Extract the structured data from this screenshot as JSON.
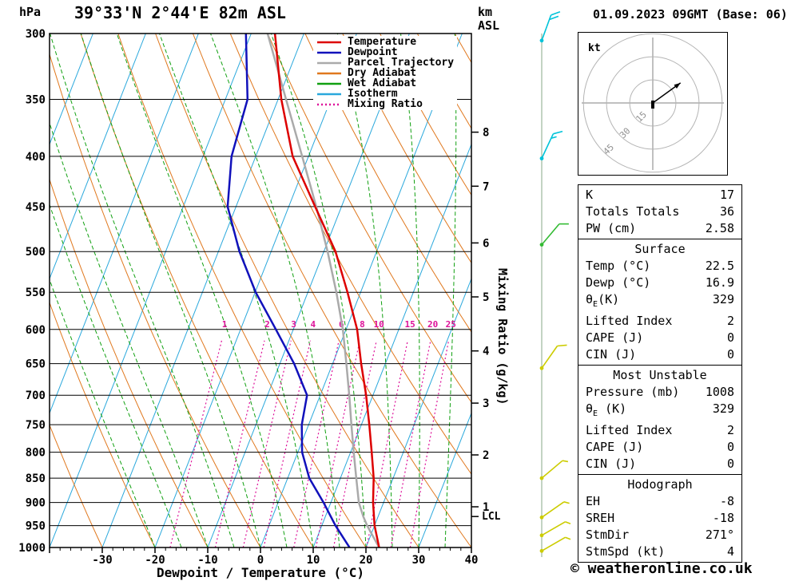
{
  "header": {
    "pressure_unit": "hPa",
    "station": "39°33'N 2°44'E 82m ASL",
    "altitude_unit_line1": "km",
    "altitude_unit_line2": "ASL",
    "datetime": "01.09.2023 09GMT (Base: 06)"
  },
  "footer": {
    "credit": "© weatheronline.co.uk"
  },
  "side_labels": {
    "mixing_ratio_axis": "Mixing Ratio (g/kg)",
    "xlabel": "Dewpoint / Temperature (°C)",
    "lcl": "LCL"
  },
  "legend": [
    {
      "label": "Temperature",
      "color": "#dd0000",
      "dash": ""
    },
    {
      "label": "Dewpoint",
      "color": "#1111bb",
      "dash": ""
    },
    {
      "label": "Parcel Trajectory",
      "color": "#aaaaaa",
      "dash": ""
    },
    {
      "label": "Dry Adiabat",
      "color": "#e0781e",
      "dash": ""
    },
    {
      "label": "Wet Adiabat",
      "color": "#11a011",
      "dash": ""
    },
    {
      "label": "Isotherm",
      "color": "#2aa8dc",
      "dash": ""
    },
    {
      "label": "Mixing Ratio",
      "color": "#dd1199",
      "dash": "2,3"
    }
  ],
  "chart_data": {
    "type": "line",
    "projection": "skew-t-log-p",
    "title": "39°33'N 2°44'E 82m ASL",
    "x_axis": {
      "label": "Dewpoint / Temperature (°C)",
      "ticks": [
        -30,
        -20,
        -10,
        0,
        10,
        20,
        30,
        40
      ],
      "min": -40,
      "max": 40,
      "skew": 0.392
    },
    "y_axis": {
      "label": "hPa",
      "scale": "log",
      "ticks": [
        300,
        350,
        400,
        450,
        500,
        550,
        600,
        650,
        700,
        750,
        800,
        850,
        900,
        950,
        1000
      ]
    },
    "km_asl_ticks": [
      [
        1,
        909
      ],
      [
        2,
        805
      ],
      [
        3,
        713
      ],
      [
        4,
        631
      ],
      [
        5,
        556
      ],
      [
        6,
        490
      ],
      [
        7,
        429
      ],
      [
        8,
        378
      ]
    ],
    "lcl_pressure_hpa": 930,
    "mixing_ratio_gkg": [
      1,
      2,
      3,
      4,
      6,
      8,
      10,
      15,
      20,
      25
    ],
    "isotherm_step_c": 10,
    "dry_adiabat_step_c": 10,
    "wet_adiabat_step_c": 5,
    "style": {
      "pressure_line": "#000000",
      "isotherm": "#2aa8dc",
      "dry_adiabat": "#e0781e",
      "wet_adiabat": "#11a011",
      "mixing_ratio": "#dd1199",
      "barb_axis": "#9bb89b"
    },
    "series": [
      {
        "name": "Temperature",
        "color": "#dd0000",
        "points_p_t": [
          [
            1000,
            22.5
          ],
          [
            950,
            20.0
          ],
          [
            900,
            18.0
          ],
          [
            850,
            16.3
          ],
          [
            800,
            14.0
          ],
          [
            750,
            11.5
          ],
          [
            700,
            8.7
          ],
          [
            650,
            5.4
          ],
          [
            600,
            2.1
          ],
          [
            550,
            -2.5
          ],
          [
            500,
            -7.8
          ],
          [
            450,
            -15.0
          ],
          [
            400,
            -23.0
          ],
          [
            350,
            -29.4
          ],
          [
            300,
            -35.5
          ]
        ]
      },
      {
        "name": "Dewpoint",
        "color": "#1111bb",
        "points_p_t": [
          [
            1000,
            16.9
          ],
          [
            950,
            12.6
          ],
          [
            900,
            8.6
          ],
          [
            850,
            4.1
          ],
          [
            800,
            0.8
          ],
          [
            750,
            -1.3
          ],
          [
            700,
            -2.5
          ],
          [
            650,
            -7.3
          ],
          [
            600,
            -13.3
          ],
          [
            550,
            -19.9
          ],
          [
            500,
            -26.0
          ],
          [
            450,
            -31.6
          ],
          [
            400,
            -34.6
          ],
          [
            350,
            -35.8
          ],
          [
            300,
            -41.0
          ]
        ]
      },
      {
        "name": "Parcel Trajectory",
        "color": "#aaaaaa",
        "points_p_t": [
          [
            1000,
            22.5
          ],
          [
            950,
            18.6
          ],
          [
            930,
            17.2
          ],
          [
            900,
            15.3
          ],
          [
            850,
            13.0
          ],
          [
            800,
            10.6
          ],
          [
            750,
            8.1
          ],
          [
            700,
            5.5
          ],
          [
            650,
            2.6
          ],
          [
            600,
            -0.6
          ],
          [
            550,
            -4.6
          ],
          [
            500,
            -9.3
          ],
          [
            450,
            -14.8
          ],
          [
            400,
            -21.2
          ],
          [
            350,
            -28.5
          ],
          [
            300,
            -36.9
          ]
        ]
      }
    ],
    "wind_barbs": [
      {
        "pressure": 305,
        "color": "#00c3d9",
        "dir_deg": 20,
        "speed_kt": 20
      },
      {
        "pressure": 402,
        "color": "#00c3d9",
        "dir_deg": 25,
        "speed_kt": 15
      },
      {
        "pressure": 492,
        "color": "#33bb33",
        "dir_deg": 40,
        "speed_kt": 10
      },
      {
        "pressure": 657,
        "color": "#cccc00",
        "dir_deg": 35,
        "speed_kt": 10
      },
      {
        "pressure": 850,
        "color": "#cccc00",
        "dir_deg": 50,
        "speed_kt": 5
      },
      {
        "pressure": 932,
        "color": "#cccc00",
        "dir_deg": 55,
        "speed_kt": 5
      },
      {
        "pressure": 972,
        "color": "#cccc00",
        "dir_deg": 60,
        "speed_kt": 5
      },
      {
        "pressure": 1008,
        "color": "#cccc00",
        "dir_deg": 60,
        "speed_kt": 5
      }
    ]
  },
  "hodograph": {
    "unit_label": "kt",
    "ring_labels_kt": [
      15,
      30,
      45
    ],
    "arrow_tip_kt": {
      "u": 18,
      "v": 13
    },
    "storm_dir_deg": 271,
    "storm_speed_kt": 4
  },
  "tables": [
    {
      "header": null,
      "rows": [
        [
          "K",
          "17"
        ],
        [
          "Totals Totals",
          "36"
        ],
        [
          "PW (cm)",
          "2.58"
        ]
      ]
    },
    {
      "header": "Surface",
      "rows": [
        [
          "Temp (°C)",
          "22.5"
        ],
        [
          "Dewp (°C)",
          "16.9"
        ],
        [
          "θE(K)",
          "329"
        ],
        [
          "Lifted Index",
          "2"
        ],
        [
          "CAPE (J)",
          "0"
        ],
        [
          "CIN (J)",
          "0"
        ]
      ]
    },
    {
      "header": "Most Unstable",
      "rows": [
        [
          "Pressure (mb)",
          "1008"
        ],
        [
          "θE (K)",
          "329"
        ],
        [
          "Lifted Index",
          "2"
        ],
        [
          "CAPE (J)",
          "0"
        ],
        [
          "CIN (J)",
          "0"
        ]
      ]
    },
    {
      "header": "Hodograph",
      "rows": [
        [
          "EH",
          "-8"
        ],
        [
          "SREH",
          "-18"
        ],
        [
          "StmDir",
          "271°"
        ],
        [
          "StmSpd (kt)",
          "4"
        ]
      ]
    }
  ]
}
